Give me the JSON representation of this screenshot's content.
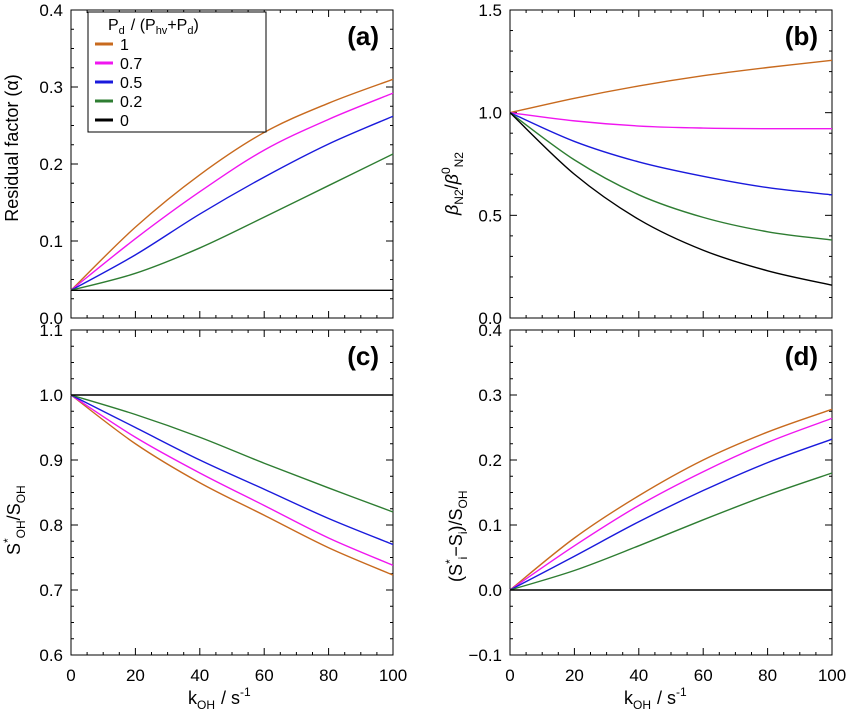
{
  "colors": {
    "1": "#C86A1E",
    "0.7": "#F016F0",
    "0.5": "#1A1ADC",
    "0.2": "#2E7D32",
    "0": "#000000"
  },
  "legend": {
    "title_main": "P",
    "title_sub": "d",
    "title_rest": "/ (P",
    "title_sub2": "hv",
    "title_rest2": "+P",
    "title_sub3": "d",
    "title_close": ")",
    "entries": [
      "1",
      "0.7",
      "0.5",
      "0.2",
      "0"
    ]
  },
  "xaxis_label": {
    "main": "k",
    "sub": "OH",
    "rest": "/ s",
    "sup": "-1"
  },
  "chart_data": [
    {
      "panel": "(a)",
      "type": "line",
      "ylabel": "Residual factor (α)",
      "xlim": [
        0,
        100
      ],
      "ylim": [
        0,
        0.4
      ],
      "xticks": [
        "0",
        "20",
        "40",
        "60",
        "80",
        "100"
      ],
      "yticks": [
        "0.0",
        "0.1",
        "0.2",
        "0.3",
        "0.4"
      ],
      "x": [
        0,
        20,
        40,
        60,
        80,
        100
      ],
      "series": [
        {
          "name": "1",
          "values": [
            0.036,
            0.118,
            0.186,
            0.241,
            0.279,
            0.31
          ]
        },
        {
          "name": "0.7",
          "values": [
            0.036,
            0.103,
            0.164,
            0.218,
            0.258,
            0.292
          ]
        },
        {
          "name": "0.5",
          "values": [
            0.036,
            0.082,
            0.135,
            0.183,
            0.226,
            0.262
          ]
        },
        {
          "name": "0.2",
          "values": [
            0.036,
            0.058,
            0.091,
            0.131,
            0.172,
            0.213
          ]
        },
        {
          "name": "0",
          "values": [
            0.036,
            0.036,
            0.036,
            0.036,
            0.036,
            0.036
          ]
        }
      ]
    },
    {
      "panel": "(b)",
      "type": "line",
      "ylabel": "β_N2/β^0_N2",
      "xlim": [
        0,
        100
      ],
      "ylim": [
        0,
        1.5
      ],
      "xticks": [
        "0",
        "20",
        "40",
        "60",
        "80",
        "100"
      ],
      "yticks": [
        "0.0",
        "0.5",
        "1.0",
        "1.5"
      ],
      "x": [
        0,
        20,
        40,
        60,
        80,
        100
      ],
      "series": [
        {
          "name": "1",
          "values": [
            1.0,
            1.07,
            1.13,
            1.18,
            1.22,
            1.255
          ]
        },
        {
          "name": "0.7",
          "values": [
            1.0,
            0.96,
            0.935,
            0.925,
            0.922,
            0.922
          ]
        },
        {
          "name": "0.5",
          "values": [
            1.0,
            0.86,
            0.76,
            0.69,
            0.635,
            0.6
          ]
        },
        {
          "name": "0.2",
          "values": [
            1.0,
            0.77,
            0.6,
            0.49,
            0.42,
            0.38
          ]
        },
        {
          "name": "0",
          "values": [
            1.0,
            0.7,
            0.48,
            0.33,
            0.23,
            0.16
          ]
        }
      ]
    },
    {
      "panel": "(c)",
      "type": "line",
      "ylabel": "S*_OH/S_OH",
      "xlim": [
        0,
        100
      ],
      "ylim": [
        0.6,
        1.1
      ],
      "xticks": [
        "0",
        "20",
        "40",
        "60",
        "80",
        "100"
      ],
      "yticks": [
        "0.6",
        "0.7",
        "0.8",
        "0.9",
        "1.0",
        "1.1"
      ],
      "x": [
        0,
        20,
        40,
        60,
        80,
        100
      ],
      "series": [
        {
          "name": "1",
          "values": [
            1.0,
            0.925,
            0.865,
            0.815,
            0.765,
            0.723
          ]
        },
        {
          "name": "0.7",
          "values": [
            1.0,
            0.935,
            0.88,
            0.83,
            0.78,
            0.738
          ]
        },
        {
          "name": "0.5",
          "values": [
            1.0,
            0.95,
            0.9,
            0.855,
            0.81,
            0.77
          ]
        },
        {
          "name": "0.2",
          "values": [
            1.0,
            0.97,
            0.935,
            0.895,
            0.857,
            0.82
          ]
        },
        {
          "name": "0",
          "values": [
            1.0,
            1.0,
            1.0,
            1.0,
            1.0,
            1.0
          ]
        }
      ]
    },
    {
      "panel": "(d)",
      "type": "line",
      "ylabel": "(S*_i−S_i)/S_OH",
      "xlim": [
        0,
        100
      ],
      "ylim": [
        -0.1,
        0.4
      ],
      "xticks": [
        "0",
        "20",
        "40",
        "60",
        "80",
        "100"
      ],
      "yticks": [
        "−0.1",
        "0.0",
        "0.1",
        "0.2",
        "0.3",
        "0.4"
      ],
      "x": [
        0,
        20,
        40,
        60,
        80,
        100
      ],
      "series": [
        {
          "name": "1",
          "values": [
            0.0,
            0.08,
            0.145,
            0.2,
            0.243,
            0.278
          ]
        },
        {
          "name": "0.7",
          "values": [
            0.0,
            0.068,
            0.13,
            0.182,
            0.227,
            0.264
          ]
        },
        {
          "name": "0.5",
          "values": [
            0.0,
            0.052,
            0.105,
            0.153,
            0.196,
            0.232
          ]
        },
        {
          "name": "0.2",
          "values": [
            0.0,
            0.03,
            0.068,
            0.108,
            0.146,
            0.18
          ]
        },
        {
          "name": "0",
          "values": [
            0.0,
            0.0,
            0.0,
            0.0,
            0.0,
            0.0
          ]
        }
      ]
    }
  ]
}
